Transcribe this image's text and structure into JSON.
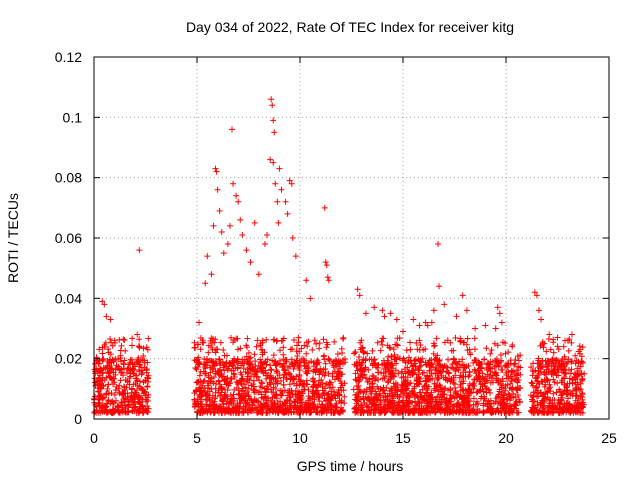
{
  "chart_data": {
    "type": "scatter",
    "title": "Day 034 of 2022, Rate Of TEC Index for receiver kitg",
    "xlabel": "GPS time / hours",
    "ylabel": "ROTI / TECUs",
    "xlim": [
      0,
      25
    ],
    "ylim": [
      0,
      0.12
    ],
    "xticks": [
      0,
      5,
      10,
      15,
      20,
      25
    ],
    "yticks": [
      0,
      0.02,
      0.04,
      0.06,
      0.08,
      0.1,
      0.12
    ],
    "xtick_labels": [
      "0",
      "5",
      "10",
      "15",
      "20",
      "25"
    ],
    "ytick_labels": [
      "0",
      "0.02",
      "0.04",
      "0.06",
      "0.08",
      "0.1",
      "0.12"
    ],
    "grid": true,
    "marker": "+",
    "color": "#ff0000",
    "coverage_segments": [
      [
        0.0,
        2.65
      ],
      [
        4.85,
        12.2
      ],
      [
        12.6,
        20.7
      ],
      [
        21.2,
        23.8
      ]
    ],
    "series": [
      {
        "name": "ROTI",
        "points": [
          [
            0.4,
            0.039
          ],
          [
            0.5,
            0.038
          ],
          [
            0.6,
            0.034
          ],
          [
            0.8,
            0.033
          ],
          [
            1.0,
            0.026
          ],
          [
            2.2,
            0.056
          ],
          [
            2.1,
            0.028
          ],
          [
            5.1,
            0.032
          ],
          [
            5.4,
            0.045
          ],
          [
            5.5,
            0.054
          ],
          [
            5.7,
            0.048
          ],
          [
            5.8,
            0.064
          ],
          [
            5.9,
            0.083
          ],
          [
            5.95,
            0.082
          ],
          [
            6.0,
            0.076
          ],
          [
            6.1,
            0.069
          ],
          [
            6.2,
            0.062
          ],
          [
            6.3,
            0.055
          ],
          [
            6.5,
            0.058
          ],
          [
            6.6,
            0.064
          ],
          [
            6.7,
            0.096
          ],
          [
            6.75,
            0.078
          ],
          [
            6.9,
            0.074
          ],
          [
            7.0,
            0.072
          ],
          [
            7.1,
            0.066
          ],
          [
            7.2,
            0.061
          ],
          [
            7.4,
            0.056
          ],
          [
            7.6,
            0.052
          ],
          [
            7.8,
            0.065
          ],
          [
            8.0,
            0.048
          ],
          [
            8.3,
            0.058
          ],
          [
            8.4,
            0.061
          ],
          [
            8.55,
            0.086
          ],
          [
            8.6,
            0.106
          ],
          [
            8.65,
            0.104
          ],
          [
            8.7,
            0.099
          ],
          [
            8.75,
            0.095
          ],
          [
            8.7,
            0.085
          ],
          [
            8.8,
            0.078
          ],
          [
            8.9,
            0.072
          ],
          [
            8.95,
            0.065
          ],
          [
            9.0,
            0.083
          ],
          [
            9.1,
            0.076
          ],
          [
            9.3,
            0.072
          ],
          [
            9.4,
            0.068
          ],
          [
            9.5,
            0.079
          ],
          [
            9.6,
            0.078
          ],
          [
            9.65,
            0.06
          ],
          [
            9.8,
            0.054
          ],
          [
            10.3,
            0.046
          ],
          [
            10.5,
            0.04
          ],
          [
            11.2,
            0.07
          ],
          [
            11.25,
            0.052
          ],
          [
            11.3,
            0.051
          ],
          [
            11.35,
            0.047
          ],
          [
            11.4,
            0.046
          ],
          [
            12.8,
            0.043
          ],
          [
            12.9,
            0.041
          ],
          [
            13.2,
            0.035
          ],
          [
            13.6,
            0.037
          ],
          [
            14.0,
            0.036
          ],
          [
            14.1,
            0.034
          ],
          [
            14.4,
            0.035
          ],
          [
            14.7,
            0.033
          ],
          [
            15.0,
            0.029
          ],
          [
            15.5,
            0.033
          ],
          [
            15.8,
            0.031
          ],
          [
            16.1,
            0.032
          ],
          [
            16.2,
            0.031
          ],
          [
            16.4,
            0.032
          ],
          [
            16.5,
            0.036
          ],
          [
            16.7,
            0.058
          ],
          [
            16.75,
            0.044
          ],
          [
            17.0,
            0.038
          ],
          [
            17.6,
            0.034
          ],
          [
            17.9,
            0.041
          ],
          [
            18.1,
            0.036
          ],
          [
            18.5,
            0.03
          ],
          [
            19.0,
            0.031
          ],
          [
            19.5,
            0.03
          ],
          [
            19.6,
            0.037
          ],
          [
            19.7,
            0.035
          ],
          [
            19.8,
            0.032
          ],
          [
            20.3,
            0.024
          ],
          [
            21.4,
            0.042
          ],
          [
            21.5,
            0.041
          ],
          [
            21.6,
            0.036
          ],
          [
            21.7,
            0.033
          ],
          [
            22.1,
            0.028
          ],
          [
            22.5,
            0.027
          ],
          [
            22.8,
            0.024
          ],
          [
            23.2,
            0.028
          ],
          [
            23.6,
            0.023
          ]
        ]
      }
    ]
  }
}
